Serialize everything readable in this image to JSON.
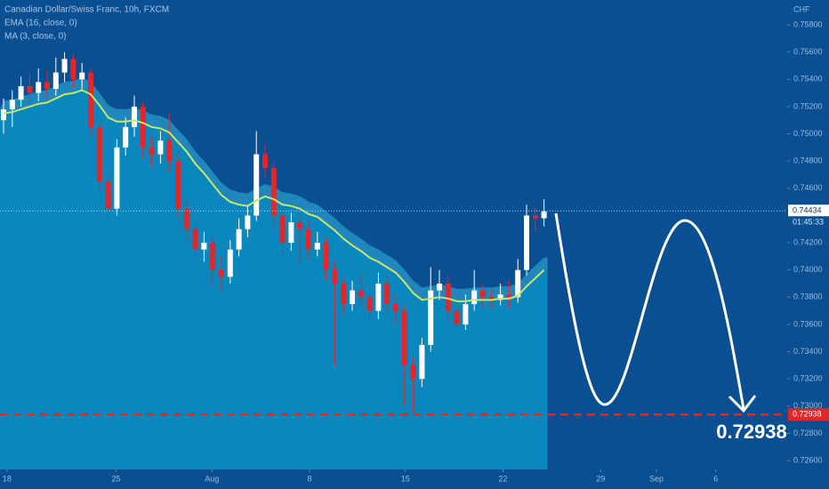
{
  "chart_data": {
    "type": "candlestick",
    "title": "Canadian Dollar/Swiss Franc, 10h, FXCM",
    "ma_label": "MA (3, close, 0)",
    "y_unit": "CHF",
    "up_color": "#ffffff",
    "down_color": "#e4262b",
    "open": [
      0.751,
      0.7518,
      0.7525,
      0.7535,
      0.753,
      0.7538,
      0.7533,
      0.7545,
      0.7555,
      0.754,
      0.7545,
      0.7505,
      0.7465,
      0.7445,
      0.749,
      0.7505,
      0.752,
      0.749,
      0.7485,
      0.7495,
      0.748,
      0.7445,
      0.743,
      0.7415,
      0.742,
      0.74,
      0.7395,
      0.7415,
      0.743,
      0.744,
      0.7485,
      0.7475,
      0.744,
      0.742,
      0.7435,
      0.743,
      0.7415,
      0.742,
      0.74,
      0.739,
      0.7375,
      0.7385,
      0.738,
      0.737,
      0.739,
      0.7375,
      0.737,
      0.733,
      0.732,
      0.7345,
      0.7385,
      0.739,
      0.737,
      0.736,
      0.7375,
      0.7385,
      0.738,
      0.7378,
      0.7382,
      0.738,
      0.74,
      0.744,
      0.7438
    ],
    "high": [
      0.7526,
      0.7532,
      0.7542,
      0.7545,
      0.7548,
      0.7546,
      0.7556,
      0.756,
      0.7558,
      0.7552,
      0.7548,
      0.751,
      0.7472,
      0.7496,
      0.7512,
      0.7528,
      0.7524,
      0.7498,
      0.7502,
      0.7515,
      0.7486,
      0.7452,
      0.7438,
      0.7428,
      0.7425,
      0.741,
      0.7422,
      0.7438,
      0.7448,
      0.7502,
      0.7492,
      0.748,
      0.7446,
      0.7442,
      0.744,
      0.7436,
      0.7428,
      0.7424,
      0.7406,
      0.7394,
      0.7392,
      0.7398,
      0.7386,
      0.7398,
      0.7396,
      0.7382,
      0.7374,
      0.7336,
      0.735,
      0.7402,
      0.74,
      0.7396,
      0.7375,
      0.7382,
      0.74,
      0.739,
      0.7386,
      0.739,
      0.7392,
      0.7408,
      0.7448,
      0.7446,
      0.7452
    ],
    "low": [
      0.75,
      0.7505,
      0.752,
      0.7522,
      0.7524,
      0.7526,
      0.7528,
      0.7538,
      0.7534,
      0.7532,
      0.7498,
      0.7458,
      0.7438,
      0.744,
      0.7484,
      0.7498,
      0.7482,
      0.7476,
      0.7478,
      0.7472,
      0.7438,
      0.742,
      0.7408,
      0.7406,
      0.7388,
      0.7385,
      0.739,
      0.741,
      0.7424,
      0.7436,
      0.7468,
      0.7432,
      0.741,
      0.7414,
      0.7405,
      0.7408,
      0.741,
      0.7392,
      0.733,
      0.7368,
      0.737,
      0.7372,
      0.7362,
      0.7364,
      0.7368,
      0.736,
      0.73,
      0.7295,
      0.7314,
      0.734,
      0.7378,
      0.7362,
      0.7355,
      0.7356,
      0.737,
      0.7372,
      0.7372,
      0.7374,
      0.7372,
      0.7376,
      0.7396,
      0.7428,
      0.7432
    ],
    "close": [
      0.7518,
      0.7525,
      0.7535,
      0.753,
      0.7538,
      0.7533,
      0.7545,
      0.7555,
      0.754,
      0.7545,
      0.7505,
      0.7465,
      0.7445,
      0.749,
      0.7505,
      0.752,
      0.749,
      0.7485,
      0.7495,
      0.748,
      0.7445,
      0.743,
      0.7415,
      0.742,
      0.74,
      0.7395,
      0.7415,
      0.743,
      0.744,
      0.7485,
      0.7475,
      0.744,
      0.742,
      0.7435,
      0.743,
      0.7415,
      0.742,
      0.74,
      0.739,
      0.7375,
      0.7385,
      0.738,
      0.737,
      0.739,
      0.7375,
      0.737,
      0.733,
      0.732,
      0.7345,
      0.7385,
      0.739,
      0.737,
      0.736,
      0.7375,
      0.7385,
      0.738,
      0.7378,
      0.7382,
      0.738,
      0.74,
      0.744,
      0.7438,
      0.7443
    ],
    "series": [
      {
        "name": "EMA (16, close, 0)",
        "color": "#c8e66a",
        "values": [
          0.7515,
          0.7516,
          0.7518,
          0.752,
          0.7522,
          0.7523,
          0.7526,
          0.7529,
          0.753,
          0.7532,
          0.7529,
          0.7521,
          0.7512,
          0.7509,
          0.7509,
          0.751,
          0.7508,
          0.7505,
          0.7504,
          0.7501,
          0.7494,
          0.7487,
          0.7478,
          0.7471,
          0.7463,
          0.7455,
          0.745,
          0.7448,
          0.7447,
          0.7451,
          0.7454,
          0.7452,
          0.7448,
          0.7447,
          0.7445,
          0.7441,
          0.7439,
          0.7434,
          0.7429,
          0.7423,
          0.7418,
          0.7414,
          0.7409,
          0.7406,
          0.7402,
          0.7398,
          0.7391,
          0.7383,
          0.7378,
          0.7379,
          0.738,
          0.7379,
          0.7377,
          0.7377,
          0.7378,
          0.7378,
          0.7378,
          0.7379,
          0.7379,
          0.7381,
          0.7388,
          0.7394,
          0.74
        ]
      }
    ],
    "xlim": [
      0,
      90
    ],
    "xticks": [
      {
        "value": 0.4,
        "label": "18"
      },
      {
        "value": 12.9,
        "label": "25"
      },
      {
        "value": 23.9,
        "label": "Aug"
      },
      {
        "value": 35.1,
        "label": "8"
      },
      {
        "value": 46.1,
        "label": "15"
      },
      {
        "value": 57.3,
        "label": "22"
      },
      {
        "value": 68.5,
        "label": "29"
      },
      {
        "value": 74.9,
        "label": "Sep"
      },
      {
        "value": 81.7,
        "label": "6"
      }
    ],
    "ylim": [
      0.72535,
      0.75983
    ],
    "yticks": [
      {
        "value": 0.758,
        "label": "0.75800"
      },
      {
        "value": 0.756,
        "label": "0.75600"
      },
      {
        "value": 0.754,
        "label": "0.75400"
      },
      {
        "value": 0.752,
        "label": "0.75200"
      },
      {
        "value": 0.75,
        "label": "0.75000"
      },
      {
        "value": 0.748,
        "label": "0.74800"
      },
      {
        "value": 0.746,
        "label": "0.74600"
      },
      {
        "value": 0.742,
        "label": "0.74200"
      },
      {
        "value": 0.74,
        "label": "0.74000"
      },
      {
        "value": 0.738,
        "label": "0.73800"
      },
      {
        "value": 0.736,
        "label": "0.73600"
      },
      {
        "value": 0.734,
        "label": "0.73400"
      },
      {
        "value": 0.732,
        "label": "0.73200"
      },
      {
        "value": 0.73,
        "label": "0.73000"
      },
      {
        "value": 0.728,
        "label": "0.72800"
      },
      {
        "value": 0.726,
        "label": "0.72600"
      }
    ],
    "current_price": {
      "value": 0.74434,
      "label": "0.74434"
    },
    "countdown": "01:45:33",
    "target": {
      "value": 0.72938,
      "label": "0.72938"
    }
  }
}
